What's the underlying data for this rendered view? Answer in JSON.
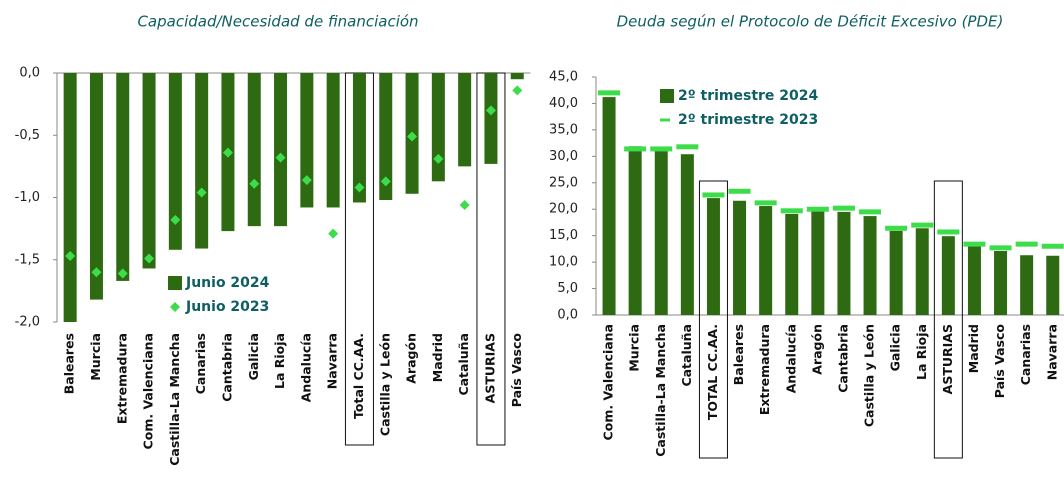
{
  "chart_data": [
    {
      "type": "bar",
      "title": "Capacidad/Necesidad de financiación",
      "categories": [
        "Baleares",
        "Murcia",
        "Extremadura",
        "Com. Valenciana",
        "Castilla-La Mancha",
        "Canarias",
        "Cantabria",
        "Galicia",
        "La Rioja",
        "Andalucía",
        "Navarra",
        "Total CC.AA.",
        "Castilla y León",
        "Aragón",
        "Madrid",
        "Cataluña",
        "ASTURIAS",
        "País Vasco"
      ],
      "series": [
        {
          "name": "Junio 2024",
          "color": "#2d6a12",
          "style": "bar",
          "values": [
            -2.0,
            -1.82,
            -1.67,
            -1.57,
            -1.42,
            -1.41,
            -1.27,
            -1.23,
            -1.23,
            -1.08,
            -1.08,
            -1.04,
            -1.02,
            -0.97,
            -0.87,
            -0.75,
            -0.73,
            -0.05
          ]
        },
        {
          "name": "Junio 2023",
          "color": "#3ddc4a",
          "style": "diamond",
          "values": [
            -1.47,
            -1.6,
            -1.61,
            -1.49,
            -1.18,
            -0.96,
            -0.64,
            -0.89,
            -0.68,
            -0.86,
            -1.29,
            -0.92,
            -0.87,
            -0.51,
            -0.69,
            -1.06,
            -0.3,
            -0.14
          ]
        }
      ],
      "ylim": [
        -2,
        0
      ],
      "yticks": [
        {
          "value": 0,
          "label": "0,0"
        },
        {
          "value": -0.5,
          "label": "-0,5"
        },
        {
          "value": -1,
          "label": "-1,0"
        },
        {
          "value": -1.5,
          "label": "-1,5"
        },
        {
          "value": -2,
          "label": "-2,0"
        }
      ]
    },
    {
      "type": "bar",
      "title": "Deuda según el Protocolo de Déficit Excesivo (PDE)",
      "categories": [
        "Com. Valenciana",
        "Murcia",
        "Castilla-La Mancha",
        "Cataluña",
        "TOTAL CC.AA.",
        "Baleares",
        "Extremadura",
        "Andalucía",
        "Aragón",
        "Cantabria",
        "Castilla y León",
        "Galicia",
        "La Rioja",
        "ASTURIAS",
        "Madrid",
        "País Vasco",
        "Canarias",
        "Navarra"
      ],
      "series": [
        {
          "name": "2º trimestre 2024",
          "color": "#2d6a12",
          "style": "bar",
          "values": [
            41.2,
            31.9,
            31.0,
            30.4,
            22.1,
            21.6,
            20.6,
            19.1,
            19.7,
            19.5,
            18.7,
            15.9,
            16.4,
            14.9,
            13.0,
            12.1,
            11.3,
            11.2
          ]
        },
        {
          "name": "2º trimestre 2023",
          "color": "#3ddc4a",
          "style": "dash",
          "values": [
            42.0,
            31.4,
            31.4,
            31.8,
            22.7,
            23.4,
            21.2,
            19.7,
            20.0,
            20.2,
            19.5,
            16.4,
            17.0,
            15.7,
            13.4,
            12.7,
            13.4,
            13.0
          ]
        }
      ],
      "ylim": [
        0,
        45
      ],
      "yticks": [
        {
          "value": 0,
          "label": "0,0"
        },
        {
          "value": 5,
          "label": "5,0"
        },
        {
          "value": 10,
          "label": "10,0"
        },
        {
          "value": 15,
          "label": "15,0"
        },
        {
          "value": 20,
          "label": "20,0"
        },
        {
          "value": 25,
          "label": "25,0"
        },
        {
          "value": 30,
          "label": "30,0"
        },
        {
          "value": 35,
          "label": "35,0"
        },
        {
          "value": 40,
          "label": "40,0"
        },
        {
          "value": 45,
          "label": "45,0"
        }
      ]
    }
  ]
}
